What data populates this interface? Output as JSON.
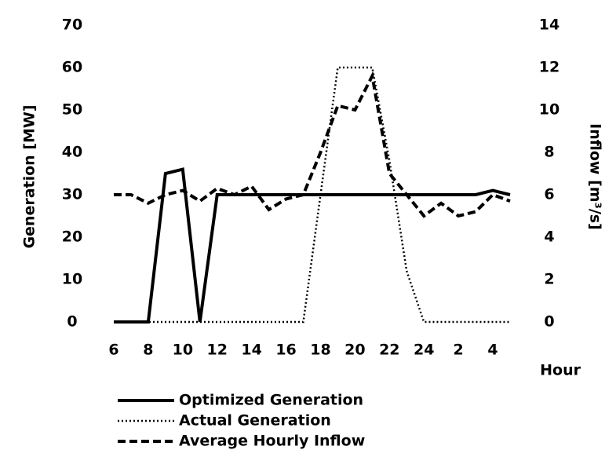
{
  "chart_data": {
    "type": "line",
    "categories": [
      6,
      null,
      8,
      null,
      10,
      null,
      12,
      null,
      14,
      null,
      16,
      null,
      18,
      null,
      20,
      null,
      22,
      null,
      24,
      null,
      2,
      null,
      4,
      null
    ],
    "x_label": "Hour",
    "y_label": "Generation [MW]",
    "y2_label": "Inflow [m³/s]",
    "ylim": [
      0,
      70
    ],
    "yticks": [
      0,
      10,
      20,
      30,
      40,
      50,
      60,
      70
    ],
    "y2lim": [
      0,
      14
    ],
    "y2ticks": [
      0,
      2,
      4,
      6,
      8,
      10,
      12,
      14
    ],
    "series": [
      {
        "name": "Optimized Generation",
        "color": "#000000",
        "dash": "solid",
        "values": [
          0,
          0,
          0,
          35,
          36,
          0,
          30,
          30,
          30,
          30,
          30,
          30,
          30,
          30,
          30,
          30,
          30,
          30,
          30,
          30,
          30,
          30,
          31,
          30
        ]
      },
      {
        "name": "Actual Generation",
        "color": "#000000",
        "dash": "dotted",
        "values": [
          0,
          0,
          0,
          0,
          0,
          0,
          0,
          0,
          0,
          0,
          0,
          0,
          30,
          60,
          60,
          60,
          38,
          12,
          0,
          0,
          0,
          0,
          0,
          0
        ]
      },
      {
        "name": "Average Hourly Inflow",
        "color": "#000000",
        "dash": "dashed",
        "axis": "y2",
        "values": [
          6,
          6,
          5.6,
          6,
          6.2,
          5.7,
          6.3,
          6,
          6.4,
          5.3,
          5.8,
          6,
          8,
          10.2,
          10,
          11.6,
          7,
          6,
          5,
          5.6,
          5,
          5.2,
          6,
          5.7
        ]
      }
    ]
  }
}
